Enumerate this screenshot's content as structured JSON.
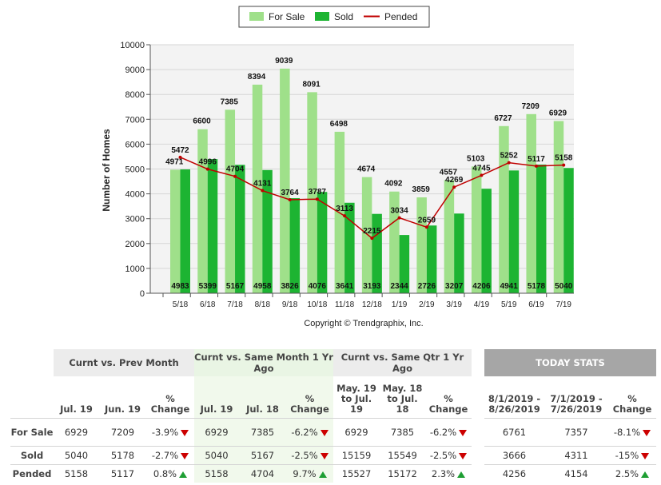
{
  "chart_data": {
    "type": "bar",
    "categories": [
      "5/18",
      "6/18",
      "7/18",
      "8/18",
      "9/18",
      "10/18",
      "11/18",
      "12/18",
      "1/19",
      "2/19",
      "3/19",
      "4/19",
      "5/19",
      "6/19",
      "7/19"
    ],
    "series": [
      {
        "name": "For Sale",
        "type": "bar",
        "color": "#9fe08a",
        "values": [
          4971,
          6600,
          7385,
          8394,
          9039,
          8091,
          6498,
          4674,
          4092,
          3859,
          4557,
          5103,
          6727,
          7209,
          6929
        ]
      },
      {
        "name": "Sold",
        "type": "bar",
        "color": "#1db432",
        "values": [
          4983,
          5399,
          5167,
          4958,
          3826,
          4076,
          3641,
          3193,
          2344,
          2726,
          3207,
          4206,
          4941,
          5178,
          5040
        ]
      },
      {
        "name": "Pended",
        "type": "line",
        "color": "#c00000",
        "values": [
          5472,
          4996,
          4704,
          4131,
          3764,
          3787,
          3113,
          2215,
          3034,
          2659,
          4269,
          4745,
          5252,
          5117,
          5158
        ]
      }
    ],
    "ylabel": "Number of Homes",
    "ylim": [
      0,
      10000
    ],
    "yticks": [
      0,
      1000,
      2000,
      3000,
      4000,
      5000,
      6000,
      7000,
      8000,
      9000,
      10000
    ],
    "copyright": "Copyright © Trendgraphix, Inc.",
    "legend": "top-center"
  },
  "table": {
    "groups": [
      "Curnt vs. Prev Month",
      "Curnt vs. Same Month 1 Yr Ago",
      "Curnt vs. Same Qtr 1 Yr Ago"
    ],
    "subheaders": [
      "Jul. 19",
      "Jun. 19",
      "% Change",
      "Jul. 19",
      "Jul. 18",
      "% Change",
      "May. 19 to Jul. 19",
      "May. 18 to Jul. 18",
      "% Change"
    ],
    "rows": [
      {
        "label": "For Sale",
        "cells": [
          "6929",
          "7209",
          "-3.9%",
          "6929",
          "7385",
          "-6.2%",
          "6929",
          "7385",
          "-6.2%"
        ],
        "dirs": [
          "down",
          "down",
          "down"
        ]
      },
      {
        "label": "Sold",
        "cells": [
          "5040",
          "5178",
          "-2.7%",
          "5040",
          "5167",
          "-2.5%",
          "15159",
          "15549",
          "-2.5%"
        ],
        "dirs": [
          "down",
          "down",
          "down"
        ]
      },
      {
        "label": "Pended",
        "cells": [
          "5158",
          "5117",
          "0.8%",
          "5158",
          "4704",
          "9.7%",
          "15527",
          "15172",
          "2.3%"
        ],
        "dirs": [
          "up",
          "up",
          "up"
        ]
      }
    ]
  },
  "today": {
    "title": "TODAY STATS",
    "subheaders": [
      "8/1/2019 - 8/26/2019",
      "7/1/2019 - 7/26/2019",
      "% Change"
    ],
    "rows": [
      {
        "cells": [
          "6761",
          "7357",
          "-8.1%"
        ],
        "dir": "down"
      },
      {
        "cells": [
          "3666",
          "4311",
          "-15%"
        ],
        "dir": "down"
      },
      {
        "cells": [
          "4256",
          "4154",
          "2.5%"
        ],
        "dir": "up"
      }
    ]
  }
}
